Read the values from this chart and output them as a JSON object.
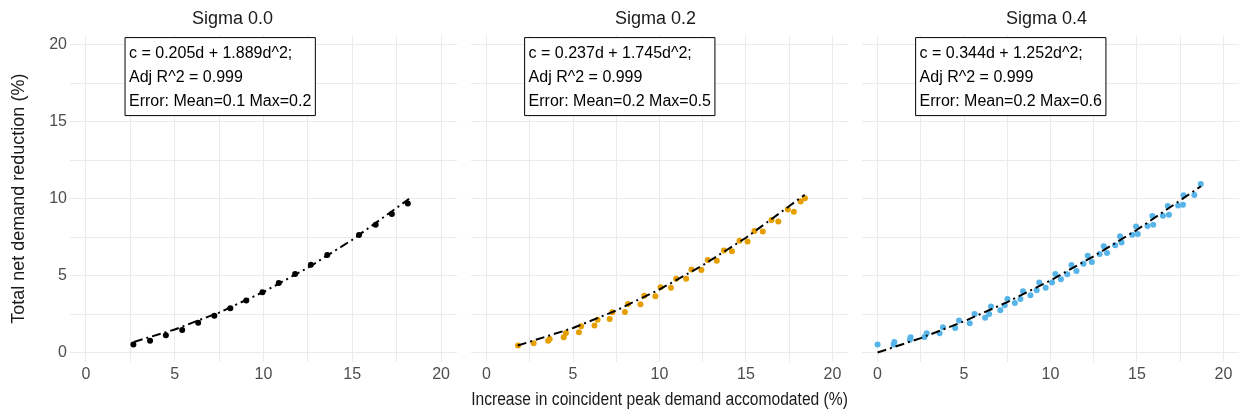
{
  "chart_data": [
    {
      "type": "scatter",
      "title": "Sigma 0.0",
      "ylabel": "Total net demand reduction (%)",
      "xlim": [
        -0.9,
        20.9
      ],
      "ylim": [
        -0.6,
        20.6
      ],
      "xticks": [
        0,
        {
          "value": 2.5,
          "label": null
        },
        5,
        {
          "value": 7.5,
          "label": null
        },
        10,
        {
          "value": 12.5,
          "label": null
        },
        15,
        {
          "value": 17.5,
          "label": null
        },
        20
      ],
      "yticks": [
        0,
        {
          "value": 2.5,
          "label": null
        },
        5,
        {
          "value": 7.5,
          "label": null
        },
        10,
        {
          "value": 12.5,
          "label": null
        },
        15,
        {
          "value": 17.5,
          "label": null
        },
        20
      ],
      "grid": true,
      "legend": false,
      "annotations": [
        "c = 0.205d + 1.889d^2;",
        "Adj R^2 = 0.999",
        "Error: Mean=0.1 Max=0.2"
      ],
      "series": [
        {
          "color": "#000000",
          "marker": "circle",
          "x": [
            2.67,
            3.61,
            4.5,
            5.42,
            6.32,
            7.23,
            8.13,
            9.03,
            9.94,
            10.86,
            11.78,
            12.67,
            13.59,
            15.38,
            16.32,
            17.23,
            18.13
          ],
          "values": [
            0.52,
            0.76,
            1.13,
            1.47,
            1.93,
            2.4,
            2.88,
            3.38,
            3.92,
            4.52,
            5.11,
            5.71,
            6.34,
            7.64,
            8.31,
            9.0,
            9.68
          ]
        },
        {
          "type": "line",
          "color": "#000000",
          "marker": "none",
          "line_style": "dashed",
          "x": [
            2.7,
            5,
            7.5,
            10,
            12.5,
            15,
            18.2
          ],
          "values": [
            0.69,
            1.5,
            2.6,
            3.94,
            5.51,
            7.33,
            9.99
          ]
        }
      ]
    },
    {
      "type": "scatter",
      "title": "Sigma 0.2",
      "xlabel": "Increase in coincident peak demand accomodated (%)",
      "xlim": [
        -0.9,
        20.9
      ],
      "ylim": [
        -0.6,
        20.6
      ],
      "xticks": [
        0,
        {
          "value": 2.5,
          "label": null
        },
        5,
        {
          "value": 7.5,
          "label": null
        },
        10,
        {
          "value": 12.5,
          "label": null
        },
        15,
        {
          "value": 17.5,
          "label": null
        },
        20
      ],
      "yticks": [
        0,
        {
          "value": 2.5,
          "label": null
        },
        5,
        {
          "value": 7.5,
          "label": null
        },
        10,
        {
          "value": 12.5,
          "label": null
        },
        15,
        {
          "value": 17.5,
          "label": null
        },
        20
      ],
      "tick_labels": "x",
      "grid": true,
      "legend": false,
      "annotations": [
        "c = 0.237d + 1.745d^2;",
        "Adj R^2 = 0.999",
        "Error: Mean=0.2 Max=0.5"
      ],
      "series": [
        {
          "color": "#e69f00",
          "marker": "circle",
          "x": [
            1.82,
            2.72,
            3.56,
            3.65,
            4.46,
            4.59,
            5.34,
            5.47,
            6.24,
            6.42,
            7.12,
            7.27,
            8.0,
            8.18,
            8.9,
            9.12,
            9.76,
            10.06,
            10.66,
            10.96,
            11.54,
            11.85,
            12.42,
            12.79,
            13.31,
            13.73,
            14.19,
            14.63,
            15.09,
            15.49,
            15.97,
            16.48,
            16.87,
            17.42,
            17.77,
            18.16,
            18.41
          ],
          "values": [
            0.48,
            0.63,
            0.8,
            0.91,
            1.02,
            1.3,
            1.34,
            1.73,
            1.78,
            2.16,
            2.21,
            2.64,
            2.66,
            3.18,
            3.16,
            3.72,
            3.68,
            4.26,
            4.24,
            4.81,
            4.81,
            5.41,
            5.39,
            6.04,
            5.99,
            6.65,
            6.6,
            7.29,
            7.23,
            7.92,
            7.88,
            8.63,
            8.53,
            9.31,
            9.16,
            9.83,
            10.04
          ]
        },
        {
          "type": "line",
          "color": "#000000",
          "marker": "none",
          "line_style": "dashed",
          "x": [
            1.8,
            5,
            7.5,
            10,
            12.5,
            15,
            18.4
          ],
          "values": [
            0.48,
            1.62,
            2.76,
            4.12,
            5.69,
            7.48,
            10.27
          ]
        }
      ]
    },
    {
      "type": "scatter",
      "title": "Sigma 0.4",
      "xlim": [
        -0.9,
        20.9
      ],
      "ylim": [
        -0.6,
        20.6
      ],
      "xticks": [
        0,
        {
          "value": 2.5,
          "label": null
        },
        5,
        {
          "value": 7.5,
          "label": null
        },
        10,
        {
          "value": 12.5,
          "label": null
        },
        15,
        {
          "value": 17.5,
          "label": null
        },
        20
      ],
      "yticks": [
        0,
        {
          "value": 2.5,
          "label": null
        },
        5,
        {
          "value": 7.5,
          "label": null
        },
        10,
        {
          "value": 12.5,
          "label": null
        },
        15,
        {
          "value": 17.5,
          "label": null
        },
        20
      ],
      "tick_labels": "x",
      "grid": true,
      "legend": false,
      "annotations": [
        "c = 0.344d + 1.252d^2;",
        "Adj R^2 = 0.999",
        "Error: Mean=0.2 Max=0.6"
      ],
      "series": [
        {
          "color": "#56b4e9",
          "marker": "circle",
          "x": [
            0,
            0.93,
            0.97,
            1.87,
            1.91,
            2.71,
            2.84,
            3.59,
            3.78,
            4.49,
            4.71,
            5.33,
            5.61,
            6.22,
            6.45,
            6.56,
            7.1,
            7.35,
            7.51,
            7.94,
            8.26,
            8.41,
            8.84,
            9.2,
            9.35,
            9.72,
            10.09,
            10.28,
            10.6,
            10.97,
            11.21,
            11.5,
            11.91,
            12.15,
            12.39,
            12.84,
            13.08,
            13.27,
            13.74,
            14.02,
            14.11,
            14.73,
            14.95,
            15.05,
            15.61,
            15.89,
            15.94,
            16.5,
            16.78,
            16.85,
            17.38,
            17.69,
            17.66,
            18.32,
            18.69
          ],
          "values": [
            0.52,
            0.52,
            0.69,
            0.84,
            0.99,
            1.01,
            1.25,
            1.25,
            1.64,
            1.6,
            2.08,
            1.9,
            2.51,
            2.27,
            2.51,
            2.99,
            2.75,
            3.07,
            3.48,
            3.22,
            3.48,
            3.98,
            3.72,
            4.05,
            4.55,
            4.22,
            4.55,
            5.11,
            4.76,
            5.09,
            5.69,
            5.3,
            5.78,
            6.3,
            5.89,
            6.41,
            6.91,
            6.47,
            6.97,
            7.56,
            7.15,
            7.66,
            8.2,
            7.71,
            8.23,
            8.87,
            8.31,
            8.9,
            9.52,
            8.96,
            9.56,
            10.22,
            9.61,
            10.24,
            10.95
          ]
        },
        {
          "type": "line",
          "color": "#000000",
          "marker": "none",
          "line_style": "dashed",
          "x": [
            0,
            2.5,
            5,
            7.5,
            10,
            12.5,
            15,
            18.7
          ],
          "values": [
            0,
            0.94,
            2.03,
            3.28,
            4.69,
            6.26,
            7.98,
            10.81
          ]
        }
      ]
    }
  ]
}
